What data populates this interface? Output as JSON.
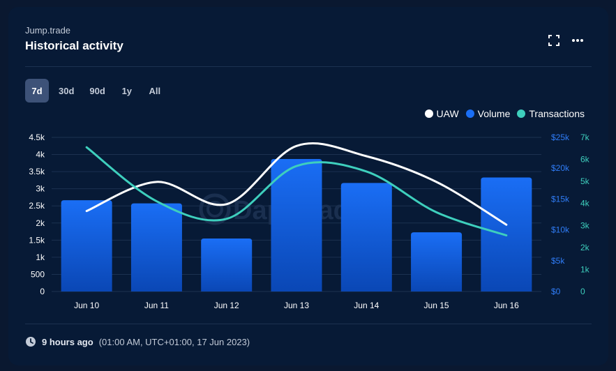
{
  "header": {
    "subtitle": "Jump.trade",
    "title": "Historical activity"
  },
  "tabs": [
    {
      "label": "7d",
      "active": true
    },
    {
      "label": "30d",
      "active": false
    },
    {
      "label": "90d",
      "active": false
    },
    {
      "label": "1y",
      "active": false
    },
    {
      "label": "All",
      "active": false
    }
  ],
  "legend": [
    {
      "label": "UAW",
      "color": "#ffffff"
    },
    {
      "label": "Volume",
      "color": "#1a6ef5"
    },
    {
      "label": "Transactions",
      "color": "#3ecfbd"
    }
  ],
  "watermark": "DappRadar",
  "chart_data": {
    "type": "bar+line",
    "categories": [
      "Jun 10",
      "Jun 11",
      "Jun 12",
      "Jun 13",
      "Jun 14",
      "Jun 15",
      "Jun 16"
    ],
    "series": [
      {
        "name": "Volume",
        "type": "bar",
        "axis": "volume",
        "values": [
          14800,
          14300,
          8600,
          21500,
          17600,
          9600,
          18500
        ]
      },
      {
        "name": "UAW",
        "type": "line",
        "axis": "uaw",
        "values": [
          2350,
          3200,
          2550,
          4250,
          3950,
          3200,
          1950
        ]
      },
      {
        "name": "Transactions",
        "type": "line",
        "axis": "transactions",
        "values": [
          6550,
          4100,
          3300,
          5700,
          5450,
          3600,
          2550
        ]
      }
    ],
    "axes": {
      "uaw": {
        "min": 0,
        "max": 4500,
        "ticks": [
          "0",
          "500",
          "1k",
          "1.5k",
          "2k",
          "2.5k",
          "3k",
          "3.5k",
          "4k",
          "4.5k"
        ],
        "color": "#ffffff"
      },
      "volume": {
        "min": 0,
        "max": 25000,
        "ticks": [
          "$0",
          "$5k",
          "$10k",
          "$15k",
          "$20k",
          "$25k"
        ],
        "color": "#2f7cf6"
      },
      "transactions": {
        "min": 0,
        "max": 7000,
        "ticks": [
          "0",
          "1k",
          "2k",
          "3k",
          "4k",
          "5k",
          "6k",
          "7k"
        ],
        "color": "#3ecfbd"
      }
    },
    "grid": true
  },
  "footer": {
    "relative_time": "9 hours ago",
    "detail": "(01:00 AM, UTC+01:00, 17 Jun 2023)"
  }
}
